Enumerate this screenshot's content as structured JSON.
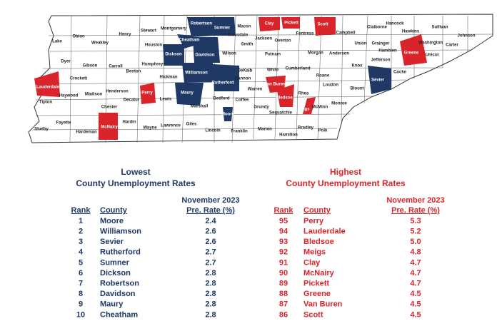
{
  "map": {
    "counties": [
      "Lake",
      "Obion",
      "Weakley",
      "Henry",
      "Stewart",
      "Montgomery",
      "Robertson",
      "Sumner",
      "Macon",
      "Clay",
      "Pickett",
      "Scott",
      "Campbell",
      "Claiborne",
      "Hancock",
      "Hawkins",
      "Sullivan",
      "Johnson",
      "Trousdale",
      "Jackson",
      "Overton",
      "Fentress",
      "Union",
      "Grainger",
      "Hamblen",
      "Washington",
      "Carter",
      "Unicoi",
      "Greene",
      "Cocke",
      "Jefferson",
      "Knox",
      "Sevier",
      "Blount",
      "Anderson",
      "Morgan",
      "Roane",
      "Loudon",
      "Monroe",
      "McMinn",
      "Polk",
      "Bradley",
      "Hamilton",
      "Meigs",
      "Rhea",
      "Bledsoe",
      "Sequatchie",
      "Marion",
      "Grundy",
      "Van Buren",
      "White",
      "Warren",
      "DeKalb",
      "Cannon",
      "Smith",
      "Putnam",
      "Cumberland",
      "Wilson",
      "Davidson",
      "Cheatham",
      "Dickson",
      "Houston",
      "Humphreys",
      "Benton",
      "Carroll",
      "Gibson",
      "Dyer",
      "Crockett",
      "Lauderdale",
      "Tipton",
      "Haywood",
      "Madison",
      "Henderson",
      "Decatur",
      "Perry",
      "Hickman",
      "Williamson",
      "Rutherford",
      "Maury",
      "Lewis",
      "Marshall",
      "Bedford",
      "Coffee",
      "Moore",
      "Lincoln",
      "Franklin",
      "Giles",
      "Lawrence",
      "Wayne",
      "Hardin",
      "McNairy",
      "Chester",
      "Hardeman",
      "Fayette",
      "Shelby"
    ]
  },
  "lowest": {
    "heading": "Lowest",
    "subheading": "County Unemployment Rates",
    "period": "November 2023",
    "columns": [
      "Rank",
      "County",
      "Pre. Rate (%)"
    ],
    "rows": [
      [
        1,
        "Moore",
        "2.4"
      ],
      [
        2,
        "Williamson",
        "2.6"
      ],
      [
        3,
        "Sevier",
        "2.6"
      ],
      [
        4,
        "Rutherford",
        "2.7"
      ],
      [
        5,
        "Sumner",
        "2.7"
      ],
      [
        6,
        "Dickson",
        "2.8"
      ],
      [
        7,
        "Robertson",
        "2.8"
      ],
      [
        8,
        "Davidson",
        "2.8"
      ],
      [
        9,
        "Maury",
        "2.8"
      ],
      [
        10,
        "Cheatham",
        "2.8"
      ]
    ]
  },
  "highest": {
    "heading": "Highest",
    "subheading": "County Unemployment Rates",
    "period": "November 2023",
    "columns": [
      "Rank",
      "County",
      "Pre. Rate (%)"
    ],
    "rows": [
      [
        95,
        "Perry",
        "5.3"
      ],
      [
        94,
        "Lauderdale",
        "5.2"
      ],
      [
        93,
        "Bledsoe",
        "5.0"
      ],
      [
        92,
        "Meigs",
        "4.8"
      ],
      [
        91,
        "Clay",
        "4.7"
      ],
      [
        90,
        "McNairy",
        "4.7"
      ],
      [
        89,
        "Pickett",
        "4.7"
      ],
      [
        88,
        "Greene",
        "4.5"
      ],
      [
        87,
        "Van Buren",
        "4.5"
      ],
      [
        86,
        "Scott",
        "4.5"
      ]
    ]
  }
}
